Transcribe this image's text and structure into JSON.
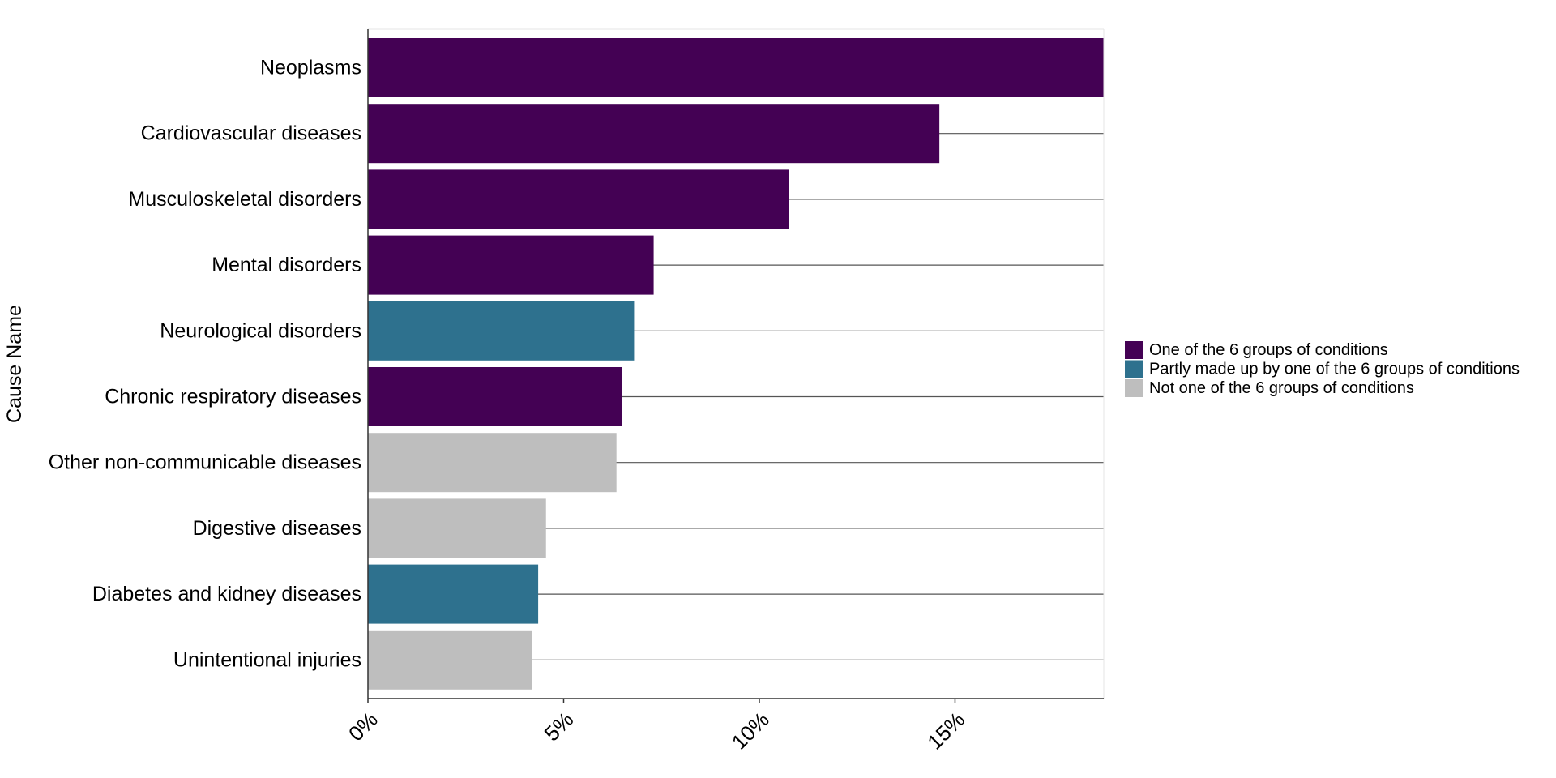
{
  "chart_data": {
    "type": "bar",
    "orientation": "horizontal",
    "ylabel": "Cause Name",
    "xlabel": "",
    "x_tick_labels": [
      "0%",
      "5%",
      "10%",
      "15%"
    ],
    "x_ticks": [
      0,
      5,
      10,
      15
    ],
    "xlim": [
      0,
      18.8
    ],
    "grid": true,
    "legend_position": "right",
    "categories": [
      "Neoplasms",
      "Cardiovascular diseases",
      "Musculoskeletal disorders",
      "Mental disorders",
      "Neurological disorders",
      "Chronic respiratory diseases",
      "Other non-communicable diseases",
      "Digestive diseases",
      "Diabetes and kidney diseases",
      "Unintentional injuries"
    ],
    "values": [
      18.8,
      14.6,
      10.75,
      7.3,
      6.8,
      6.5,
      6.35,
      4.55,
      4.35,
      4.2
    ],
    "groups": [
      0,
      0,
      0,
      0,
      1,
      0,
      2,
      2,
      1,
      2
    ],
    "legend": [
      {
        "name": "One of the 6 groups of conditions",
        "color": "#440154"
      },
      {
        "name": "Partly made up by one of the 6 groups of conditions",
        "color": "#2e718e"
      },
      {
        "name": "Not one of the 6 groups of conditions",
        "color": "#bebebe"
      }
    ]
  }
}
